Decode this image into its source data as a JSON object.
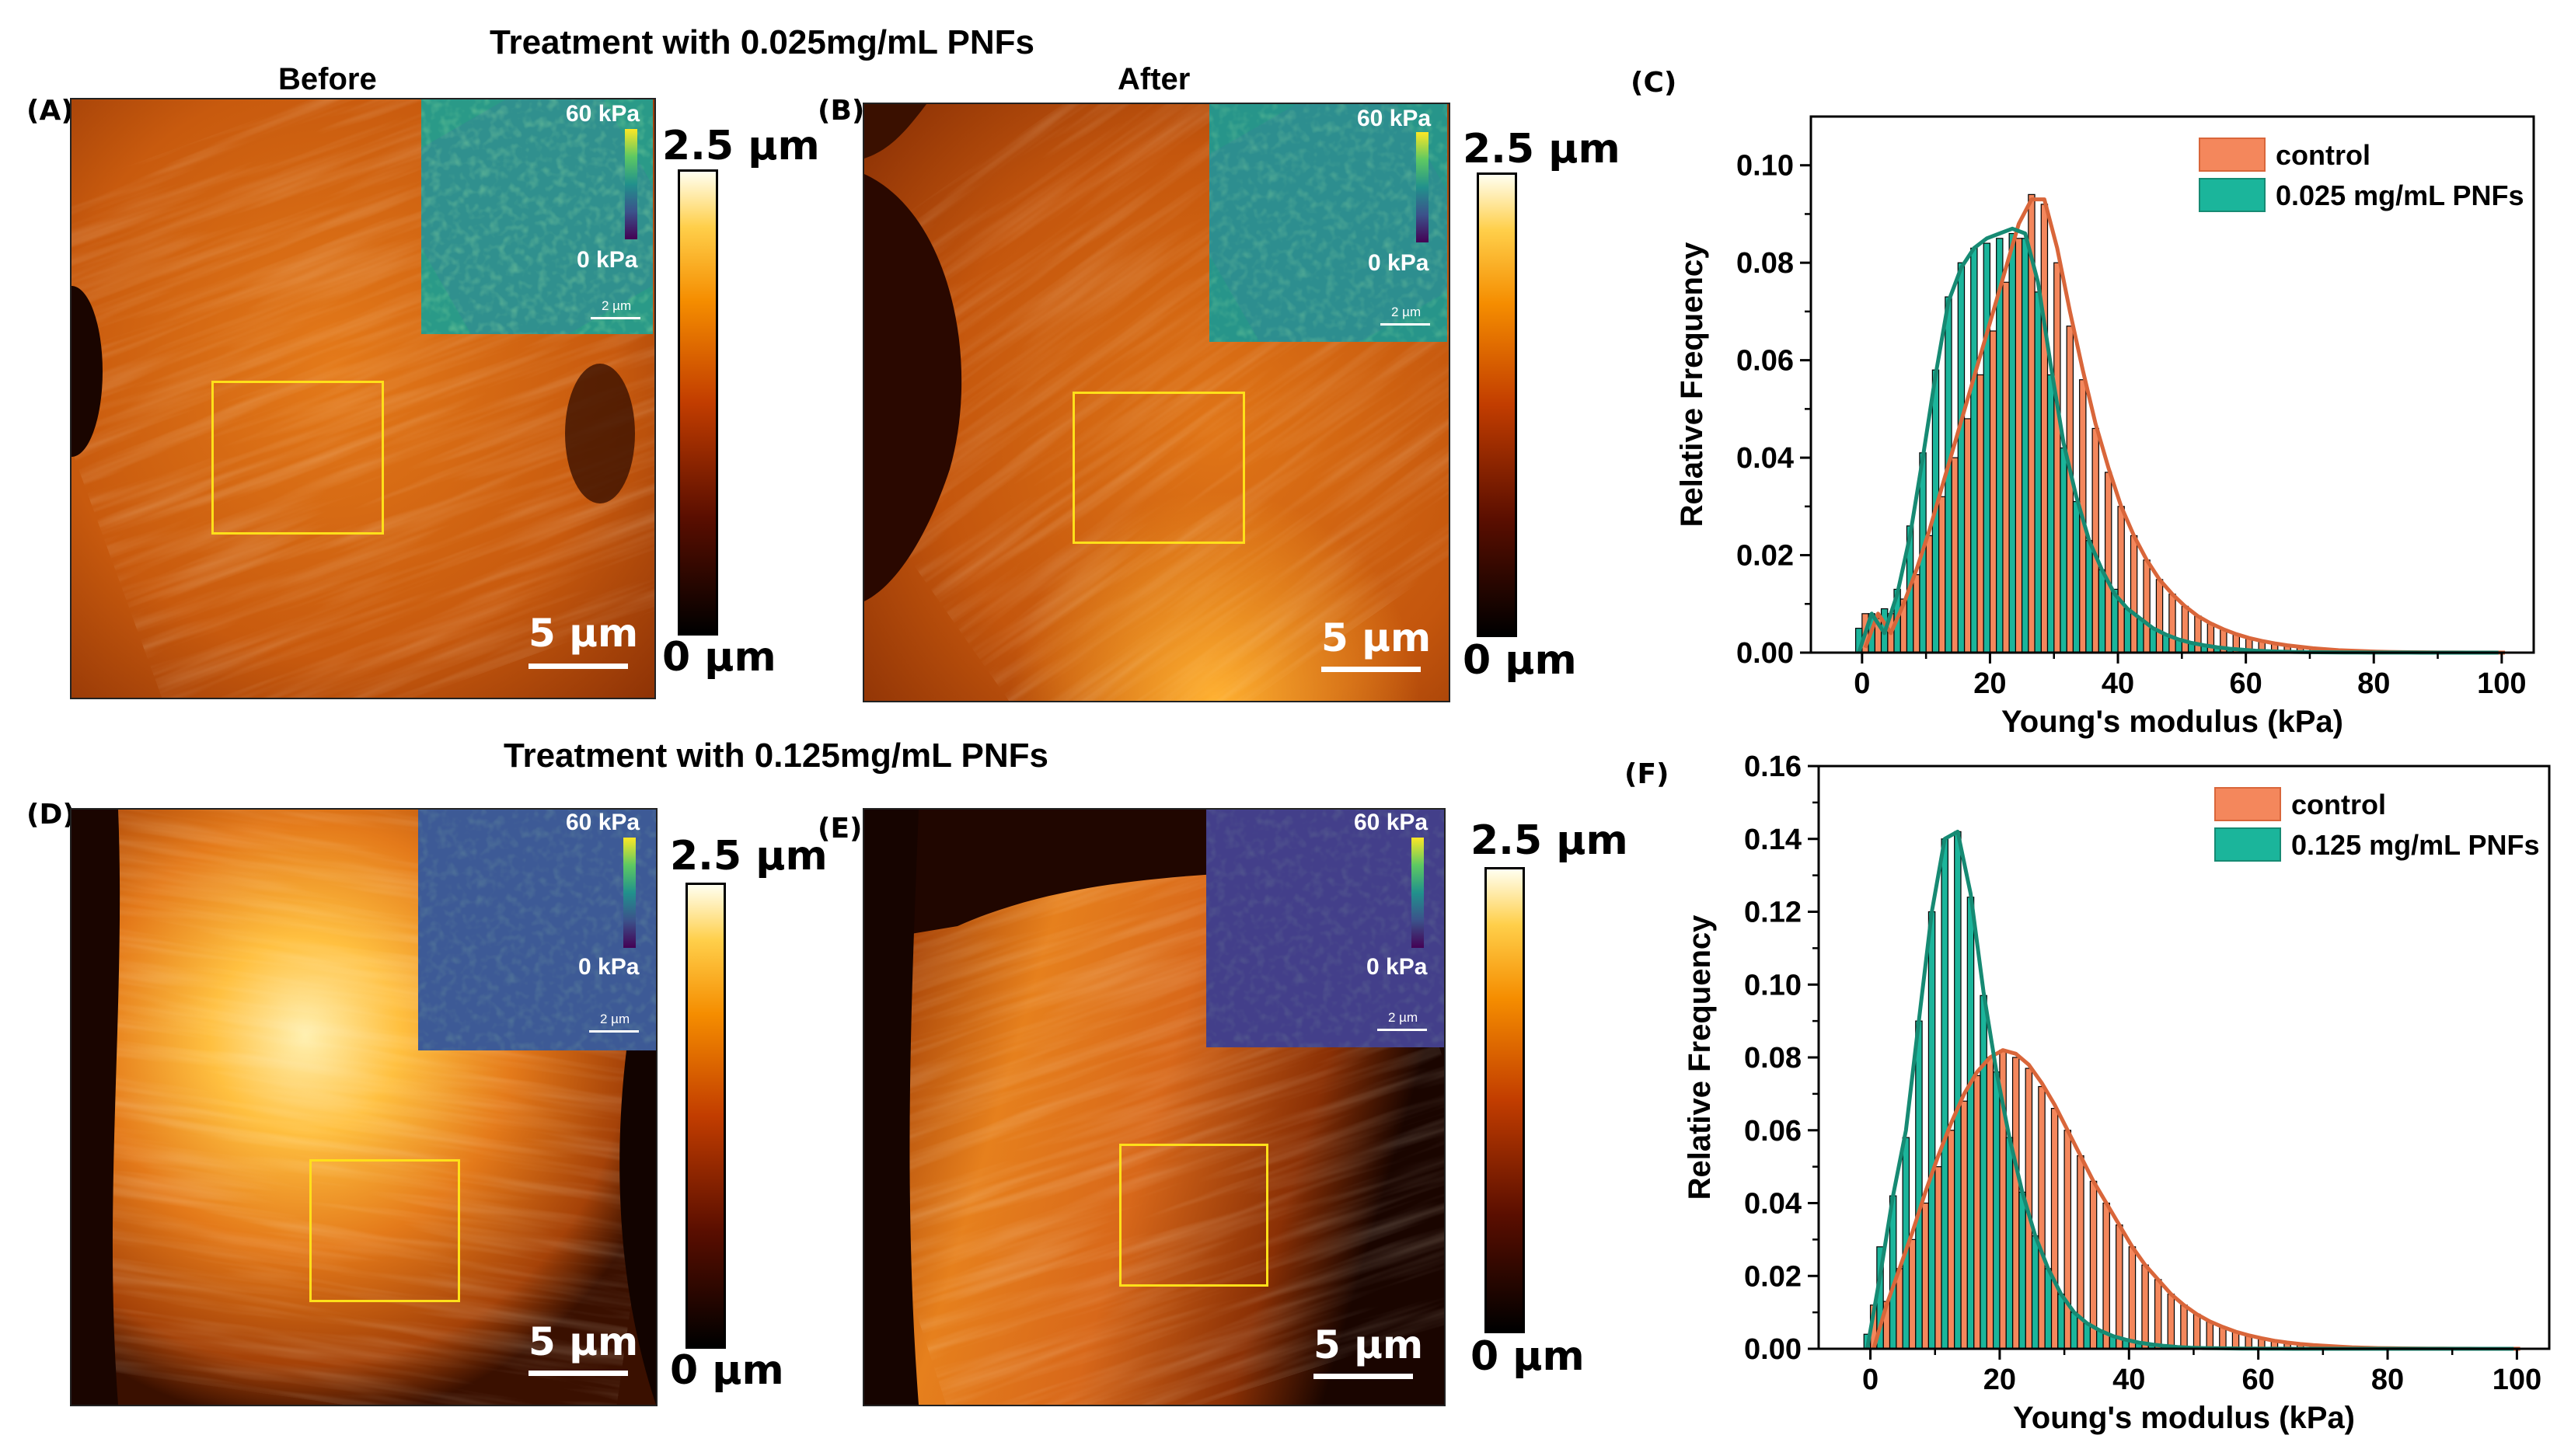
{
  "figure": {
    "title_top": "Treatment with 0.025mg/mL PNFs",
    "title_bottom": "Treatment with 0.125mg/mL PNFs",
    "col_before": "Before",
    "col_after": "After"
  },
  "panels": {
    "A": {
      "label": "(A)",
      "scale": "5 µm",
      "inset_max": "60 kPa",
      "inset_min": "0 kPa",
      "inset_scale": "2 µm"
    },
    "B": {
      "label": "(B)",
      "scale": "5 µm",
      "inset_max": "60 kPa",
      "inset_min": "0 kPa",
      "inset_scale": "2 µm"
    },
    "D": {
      "label": "(D)",
      "scale": "5 µm",
      "inset_max": "60 kPa",
      "inset_min": "0 kPa",
      "inset_scale": "2 µm"
    },
    "E": {
      "label": "(E)",
      "scale": "5 µm",
      "inset_max": "60 kPa",
      "inset_min": "0 kPa",
      "inset_scale": "2 µm"
    }
  },
  "height_bar": {
    "max": "2.5 µm",
    "min": "0 µm"
  },
  "colors": {
    "control": "#f4875c",
    "control_line": "#d9663a",
    "treated": "#1bb59b",
    "treated_line": "#168a73",
    "roi": "#ffe01a"
  },
  "chart_data": [
    {
      "panel": "(C)",
      "type": "bar",
      "title": "",
      "xlabel": "Young's modulus (kPa)",
      "ylabel": "Relative Frequency",
      "xlim": [
        -8,
        105
      ],
      "ylim": [
        0,
        0.11
      ],
      "xticks": [
        0,
        20,
        40,
        60,
        80,
        100
      ],
      "yticks": [
        0.0,
        0.02,
        0.04,
        0.06,
        0.08,
        0.1
      ],
      "ytick_labels": [
        "0.00",
        "0.02",
        "0.04",
        "0.06",
        "0.08",
        "0.10"
      ],
      "legend_position": "top-right",
      "bin_width": 2,
      "x": [
        0,
        2,
        4,
        6,
        8,
        10,
        12,
        14,
        16,
        18,
        20,
        22,
        24,
        26,
        28,
        30,
        32,
        34,
        36,
        38,
        40,
        42,
        44,
        46,
        48,
        50,
        52,
        54,
        56,
        58,
        60,
        62,
        64,
        66,
        68,
        70,
        72,
        74,
        76,
        78,
        80,
        82,
        84,
        86,
        88,
        90,
        92,
        94,
        96,
        98,
        100
      ],
      "series": [
        {
          "name": "control",
          "values": [
            0.008,
            0.007,
            0.008,
            0.011,
            0.016,
            0.024,
            0.032,
            0.04,
            0.048,
            0.057,
            0.066,
            0.076,
            0.085,
            0.094,
            0.092,
            0.08,
            0.067,
            0.056,
            0.046,
            0.037,
            0.03,
            0.024,
            0.019,
            0.015,
            0.012,
            0.0095,
            0.0075,
            0.006,
            0.0048,
            0.0038,
            0.003,
            0.0024,
            0.0019,
            0.0015,
            0.0012,
            0.0009,
            0.0007,
            0.0005,
            0.0004,
            0.0003,
            0.00022,
            0.00016,
            0.00012,
            9e-05,
            7e-05,
            5e-05,
            4e-05,
            3e-05,
            2e-05,
            1e-05,
            1e-05
          ]
        },
        {
          "name": "0.025 mg/mL PNFs",
          "values": [
            0.005,
            0.008,
            0.009,
            0.013,
            0.026,
            0.041,
            0.058,
            0.073,
            0.08,
            0.083,
            0.084,
            0.085,
            0.086,
            0.085,
            0.074,
            0.057,
            0.042,
            0.031,
            0.023,
            0.017,
            0.013,
            0.009,
            0.007,
            0.005,
            0.0038,
            0.0028,
            0.002,
            0.0015,
            0.0011,
            0.0008,
            0.0006,
            0.0004,
            0.0003,
            0.0002,
            0.00015,
            0.0001,
            8e-05,
            6e-05,
            4e-05,
            3e-05,
            2e-05,
            2e-05,
            1e-05,
            1e-05,
            1e-05,
            1e-05,
            0,
            0,
            0,
            0,
            0
          ]
        }
      ],
      "fits": [
        {
          "name": "control fit",
          "values": [
            0.001,
            0.008,
            0.004,
            0.01,
            0.017,
            0.025,
            0.034,
            0.043,
            0.052,
            0.061,
            0.07,
            0.079,
            0.088,
            0.093,
            0.093,
            0.083,
            0.07,
            0.058,
            0.047,
            0.038,
            0.03,
            0.024,
            0.019,
            0.015,
            0.012,
            0.0095,
            0.0075,
            0.006,
            0.0048,
            0.0038,
            0.003,
            0.0024,
            0.0019,
            0.0015,
            0.0012,
            0.0009,
            0.0007,
            0.0005,
            0.0004,
            0.0003,
            0.0002,
            0.00015,
            0.0001,
            8e-05,
            6e-05,
            4e-05,
            3e-05,
            2e-05,
            1e-05,
            1e-05,
            0
          ]
        },
        {
          "name": "0.025 mg/mL PNFs fit",
          "values": [
            0.0,
            0.008,
            0.004,
            0.012,
            0.024,
            0.04,
            0.057,
            0.072,
            0.079,
            0.083,
            0.085,
            0.086,
            0.087,
            0.086,
            0.076,
            0.059,
            0.043,
            0.032,
            0.023,
            0.017,
            0.012,
            0.009,
            0.007,
            0.005,
            0.0037,
            0.0027,
            0.002,
            0.0015,
            0.0011,
            0.0008,
            0.0006,
            0.0004,
            0.0003,
            0.0002,
            0.00015,
            0.0001,
            8e-05,
            6e-05,
            4e-05,
            3e-05,
            2e-05,
            2e-05,
            1e-05,
            1e-05,
            0,
            0,
            0,
            0,
            0,
            0,
            0
          ]
        }
      ]
    },
    {
      "panel": "(F)",
      "type": "bar",
      "title": "",
      "xlabel": "Young's modulus (kPa)",
      "ylabel": "Relative Frequency",
      "xlim": [
        -8,
        105
      ],
      "ylim": [
        0,
        0.16
      ],
      "xticks": [
        0,
        20,
        40,
        60,
        80,
        100
      ],
      "yticks": [
        0.0,
        0.02,
        0.04,
        0.06,
        0.08,
        0.1,
        0.12,
        0.14,
        0.16
      ],
      "ytick_labels": [
        "0.00",
        "0.02",
        "0.04",
        "0.06",
        "0.08",
        "0.10",
        "0.12",
        "0.14",
        "0.16"
      ],
      "legend_position": "top-right",
      "bin_width": 2,
      "x": [
        0,
        2,
        4,
        6,
        8,
        10,
        12,
        14,
        16,
        18,
        20,
        22,
        24,
        26,
        28,
        30,
        32,
        34,
        36,
        38,
        40,
        42,
        44,
        46,
        48,
        50,
        52,
        54,
        56,
        58,
        60,
        62,
        64,
        66,
        68,
        70,
        72,
        74,
        76,
        78,
        80,
        82,
        84,
        86,
        88,
        90,
        92,
        94,
        96,
        98,
        100
      ],
      "series": [
        {
          "name": "control",
          "values": [
            0.012,
            0.013,
            0.022,
            0.03,
            0.04,
            0.05,
            0.06,
            0.068,
            0.075,
            0.08,
            0.082,
            0.08,
            0.077,
            0.072,
            0.066,
            0.06,
            0.053,
            0.046,
            0.04,
            0.034,
            0.028,
            0.023,
            0.019,
            0.015,
            0.012,
            0.0095,
            0.0075,
            0.006,
            0.0047,
            0.0037,
            0.0029,
            0.0022,
            0.0017,
            0.0013,
            0.001,
            0.0008,
            0.0006,
            0.0004,
            0.0003,
            0.0002,
            0.00015,
            0.0001,
            8e-05,
            6e-05,
            4e-05,
            3e-05,
            2e-05,
            1e-05,
            1e-05,
            0,
            0
          ]
        },
        {
          "name": "0.125 mg/mL PNFs",
          "values": [
            0.004,
            0.028,
            0.042,
            0.058,
            0.09,
            0.12,
            0.14,
            0.142,
            0.124,
            0.097,
            0.076,
            0.058,
            0.043,
            0.031,
            0.022,
            0.015,
            0.01,
            0.007,
            0.005,
            0.0035,
            0.0025,
            0.0017,
            0.0012,
            0.0008,
            0.0005,
            0.0003,
            0.0002,
            0.00015,
            0.0001,
            7e-05,
            5e-05,
            3e-05,
            2e-05,
            1e-05,
            1e-05,
            0,
            0,
            0,
            0,
            0,
            0,
            0,
            0,
            0,
            0,
            0,
            0,
            0,
            0,
            0,
            0
          ]
        }
      ],
      "fits": [
        {
          "name": "control fit",
          "values": [
            0.0,
            0.012,
            0.022,
            0.032,
            0.043,
            0.053,
            0.062,
            0.07,
            0.076,
            0.08,
            0.082,
            0.081,
            0.078,
            0.073,
            0.067,
            0.06,
            0.053,
            0.046,
            0.04,
            0.034,
            0.028,
            0.023,
            0.019,
            0.015,
            0.012,
            0.0095,
            0.0075,
            0.006,
            0.0047,
            0.0037,
            0.0029,
            0.0022,
            0.0017,
            0.0013,
            0.001,
            0.0008,
            0.0006,
            0.0004,
            0.0003,
            0.0002,
            0.00015,
            0.0001,
            8e-05,
            6e-05,
            4e-05,
            3e-05,
            2e-05,
            1e-05,
            1e-05,
            0,
            0
          ]
        },
        {
          "name": "0.125 mg/mL PNFs fit",
          "values": [
            0.0,
            0.02,
            0.042,
            0.06,
            0.09,
            0.12,
            0.14,
            0.142,
            0.125,
            0.098,
            0.076,
            0.058,
            0.043,
            0.031,
            0.022,
            0.015,
            0.01,
            0.007,
            0.005,
            0.0035,
            0.0025,
            0.0017,
            0.0012,
            0.0008,
            0.0005,
            0.0003,
            0.0002,
            0.00015,
            0.0001,
            7e-05,
            5e-05,
            3e-05,
            2e-05,
            1e-05,
            1e-05,
            0,
            0,
            0,
            0,
            0,
            0,
            0,
            0,
            0,
            0,
            0,
            0,
            0,
            0,
            0,
            0
          ]
        }
      ]
    }
  ]
}
